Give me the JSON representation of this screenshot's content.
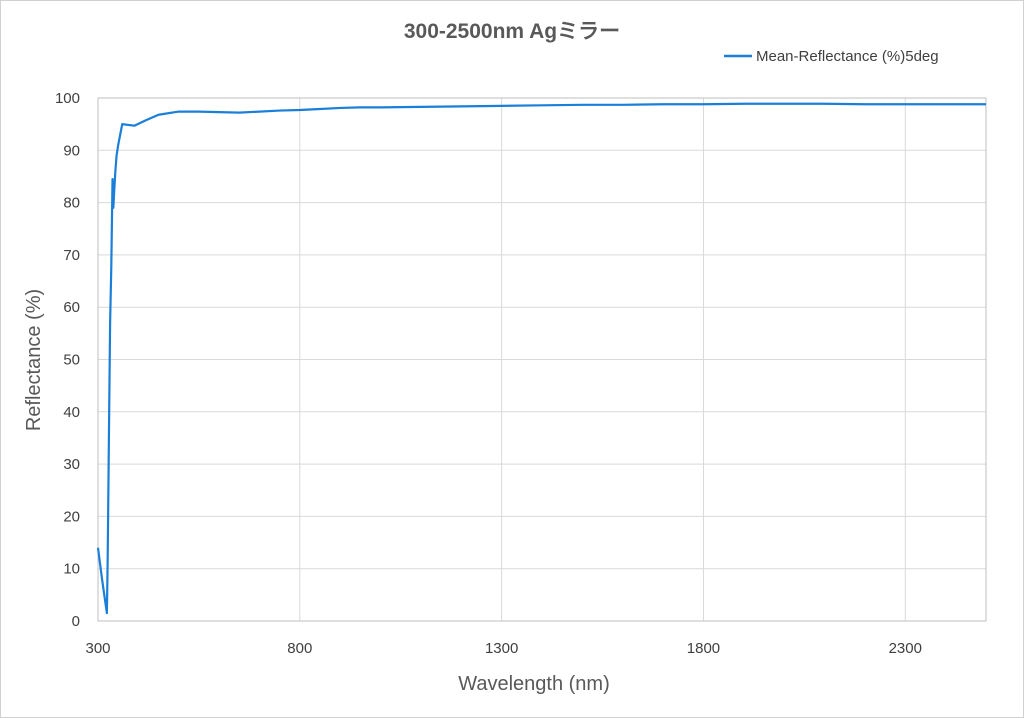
{
  "chart_data": {
    "type": "line",
    "title": "300-2500nm Agミラー",
    "xlabel": "Wavelength (nm)",
    "ylabel": "Reflectance (%)",
    "xlim": [
      300,
      2500
    ],
    "ylim": [
      0,
      100
    ],
    "x_ticks": [
      300,
      800,
      1300,
      1800,
      2300
    ],
    "y_ticks": [
      0,
      10,
      20,
      30,
      40,
      50,
      60,
      70,
      80,
      90,
      100
    ],
    "grid": true,
    "legend_position": "top-right",
    "colors": {
      "series": "#1a7fd8"
    },
    "series": [
      {
        "name": "Mean-Reflectance (%)5deg",
        "x": [
          300,
          310,
          322,
          324,
          327,
          330,
          333,
          336,
          338,
          340,
          343,
          346,
          350,
          355,
          360,
          370,
          390,
          420,
          450,
          500,
          550,
          600,
          650,
          700,
          750,
          800,
          850,
          900,
          950,
          1000,
          1100,
          1200,
          1300,
          1400,
          1500,
          1600,
          1700,
          1800,
          1900,
          2000,
          2100,
          2200,
          2300,
          2400,
          2500
        ],
        "y": [
          14,
          8,
          1.5,
          12,
          35,
          57,
          68,
          84.5,
          79,
          82,
          86,
          89,
          91,
          93,
          95,
          94.9,
          94.7,
          95.8,
          96.8,
          97.4,
          97.4,
          97.3,
          97.2,
          97.4,
          97.6,
          97.7,
          97.9,
          98.1,
          98.2,
          98.2,
          98.3,
          98.4,
          98.5,
          98.6,
          98.7,
          98.7,
          98.8,
          98.8,
          98.9,
          98.9,
          98.9,
          98.8,
          98.8,
          98.8,
          98.8
        ]
      }
    ]
  }
}
